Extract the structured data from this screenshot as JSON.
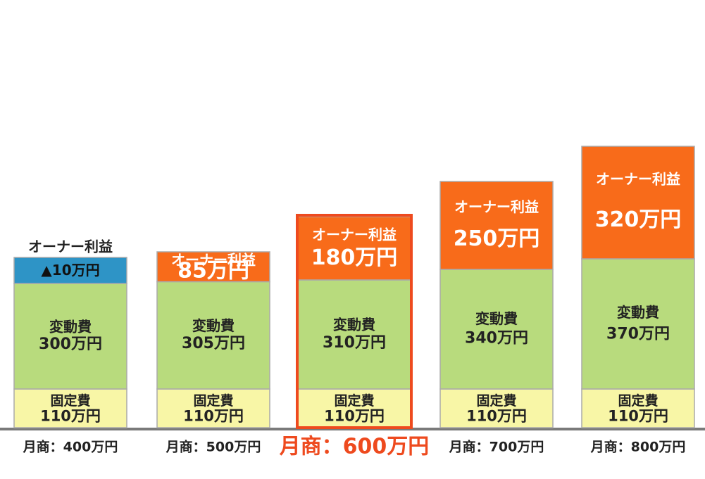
{
  "chart_data": {
    "type": "bar",
    "stacked": true,
    "categories": [
      "月商：400万円",
      "月商：500万円",
      "月商：600万円",
      "月商：700万円",
      "月商：800万円"
    ],
    "highlight_index": 2,
    "unit": "万円",
    "series": [
      {
        "name": "固定費",
        "values": [
          110,
          110,
          110,
          110,
          110
        ],
        "labels": [
          "110万円",
          "110万円",
          "110万円",
          "110万円",
          "110万円"
        ]
      },
      {
        "name": "変動費",
        "values": [
          300,
          305,
          310,
          340,
          370
        ],
        "labels": [
          "300万円",
          "305万円",
          "310万円",
          "340万円",
          "370万円"
        ]
      },
      {
        "name": "オーナー利益",
        "values": [
          -10,
          85,
          180,
          250,
          320
        ],
        "labels": [
          "▲10万円",
          "85万円",
          "180万円",
          "250万円",
          "320万円"
        ]
      }
    ]
  },
  "colors": {
    "fixed": "#f8f6a6",
    "variable": "#b8db7d",
    "profit": "#f86b1a",
    "loss": "#2e94c6",
    "border": "#aaaaaa",
    "highlight": "#ee4a1e",
    "text": "#222222",
    "profit_text": "#ffffff"
  }
}
